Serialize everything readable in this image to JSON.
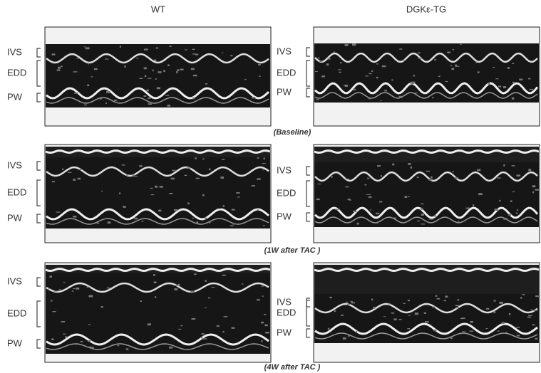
{
  "header": {
    "columns": [
      "WT",
      "DGKε-TG"
    ]
  },
  "rows": [
    {
      "caption": "(Baseline)",
      "panels": [
        {
          "labels": [
            "IVS",
            "EDD",
            "PW"
          ]
        },
        {
          "labels": [
            "IVS",
            "EDD",
            "PW"
          ]
        }
      ]
    },
    {
      "caption": "(1W after TAC )",
      "panels": [
        {
          "labels": [
            "IVS",
            "EDD",
            "PW"
          ]
        },
        {
          "labels": [
            "IVS",
            "EDD",
            "PW"
          ]
        }
      ]
    },
    {
      "caption": "(4W after TAC )",
      "panels": [
        {
          "labels": [
            "IVS",
            "EDD",
            "PW"
          ]
        },
        {
          "labels": [
            "IVS",
            "EDD",
            "PW"
          ]
        }
      ]
    }
  ]
}
